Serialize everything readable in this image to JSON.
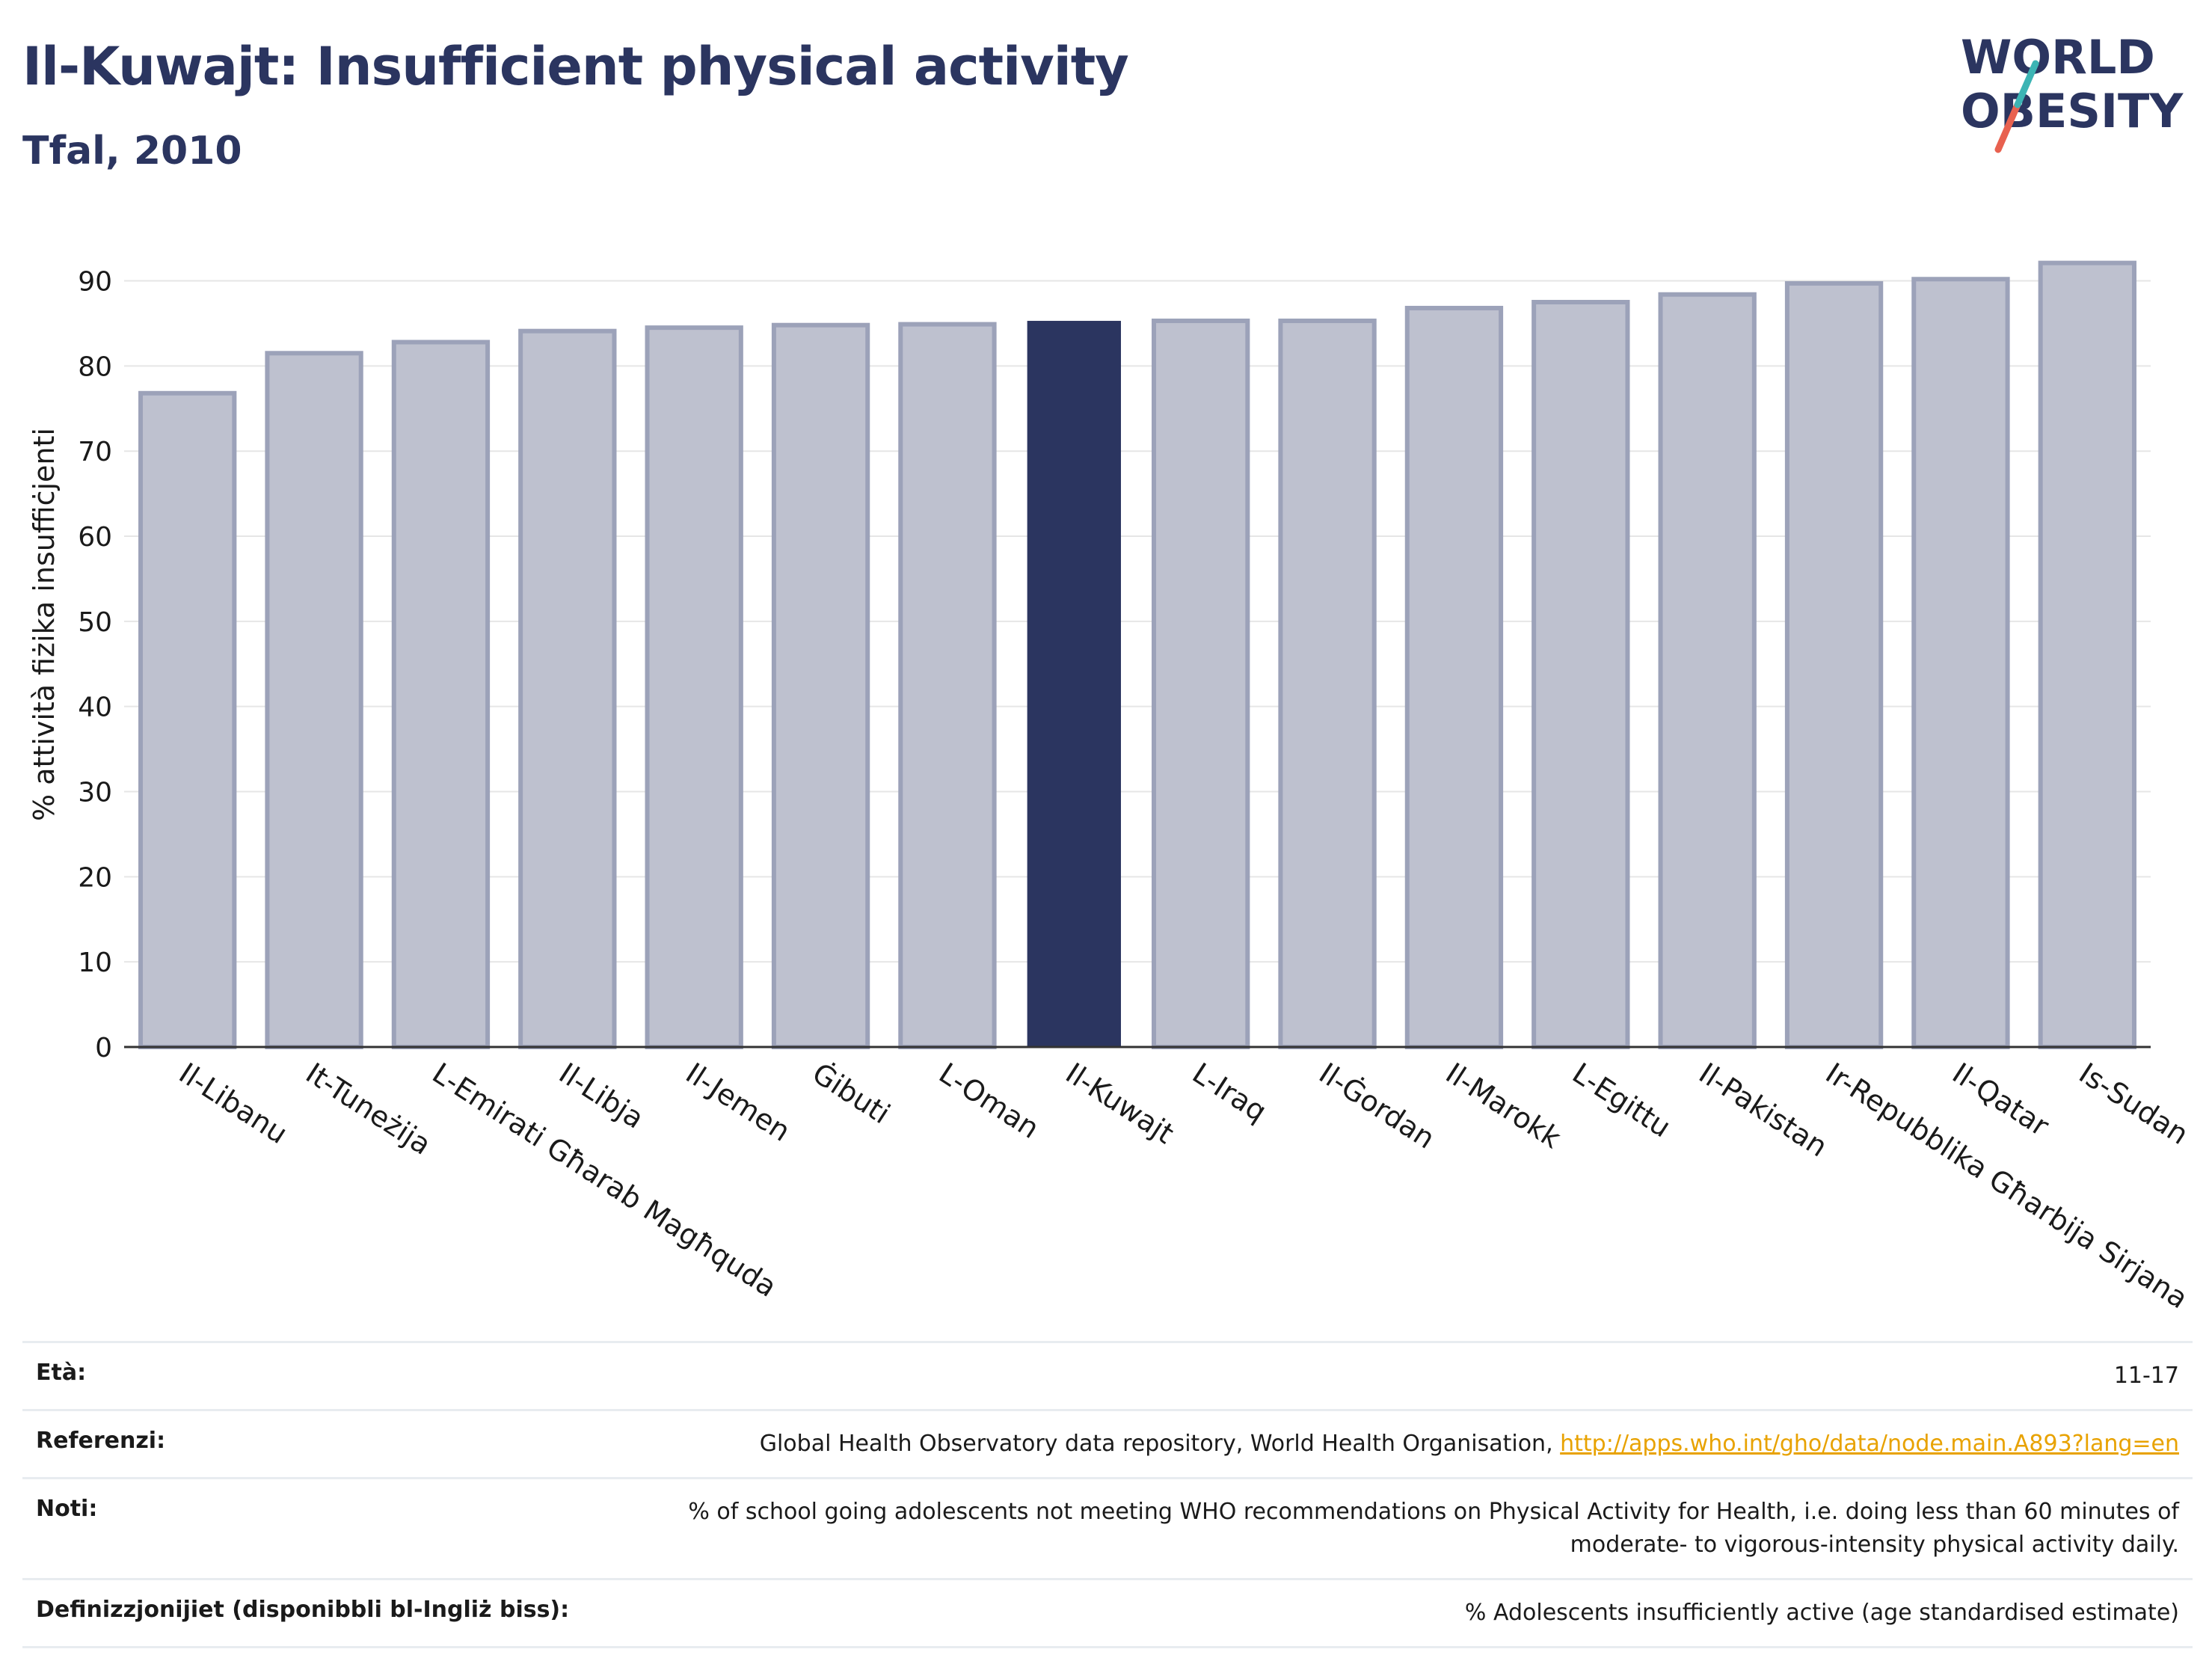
{
  "title": "Il-Kuwajt: Insufficient physical activity",
  "subtitle": "Tfal, 2010",
  "logo": {
    "line1_pre": "W",
    "line1_o": "O",
    "line1_post": "RLD",
    "line2_o": "O",
    "line2_post": "BESITY"
  },
  "colors": {
    "highlight": "#2b3560",
    "bar_fill": "#bec1cf",
    "bar_stroke": "#9ca2b9",
    "grid": "#e6e6e6",
    "axis_text": "#1a1a1a",
    "link": "#e8a200",
    "logo_navy": "#2b3560",
    "logo_teal": "#3cb4b4",
    "logo_red": "#e8614f"
  },
  "chart_data": {
    "type": "bar",
    "ylabel": "% attività fiżika insuffiċjenti",
    "ylim": [
      0,
      94
    ],
    "yticks": [
      0,
      10,
      20,
      30,
      40,
      50,
      60,
      70,
      80,
      90
    ],
    "grid": true,
    "highlight": "Il-Kuwajt",
    "categories": [
      "Il-Libanu",
      "It-Tuneżija",
      "L-Emirati Għarab Magħquda",
      "Il-Libja",
      "Il-Jemen",
      "Ġibuti",
      "L-Oman",
      "Il-Kuwajt",
      "L-Iraq",
      "Il-Ġordan",
      "Il-Marokk",
      "L-Egittu",
      "Il-Pakistan",
      "Ir-Repubblika Għarbija Sirjana",
      "Il-Qatar",
      "Is-Sudan"
    ],
    "values": [
      76.8,
      81.5,
      82.8,
      84.1,
      84.5,
      84.8,
      84.9,
      85.3,
      85.3,
      85.3,
      86.8,
      87.5,
      88.4,
      89.7,
      90.2,
      92.1
    ]
  },
  "footer": {
    "rows": [
      {
        "label": "Età:",
        "value": "11-17"
      },
      {
        "label": "Referenzi:",
        "value": "Global Health Observatory data repository, World Health Organisation, ",
        "link": "http://apps.who.int/gho/data/node.main.A893?lang=en"
      },
      {
        "label": "Noti:",
        "value": "% of school going adolescents not meeting WHO recommendations on Physical Activity for Health, i.e. doing less than 60 minutes of moderate- to vigorous-intensity physical activity daily."
      },
      {
        "label": "Definizzjonijiet (disponibbli bl-Ingliż biss):",
        "value": "% Adolescents insufficiently active (age standardised estimate)"
      }
    ]
  }
}
